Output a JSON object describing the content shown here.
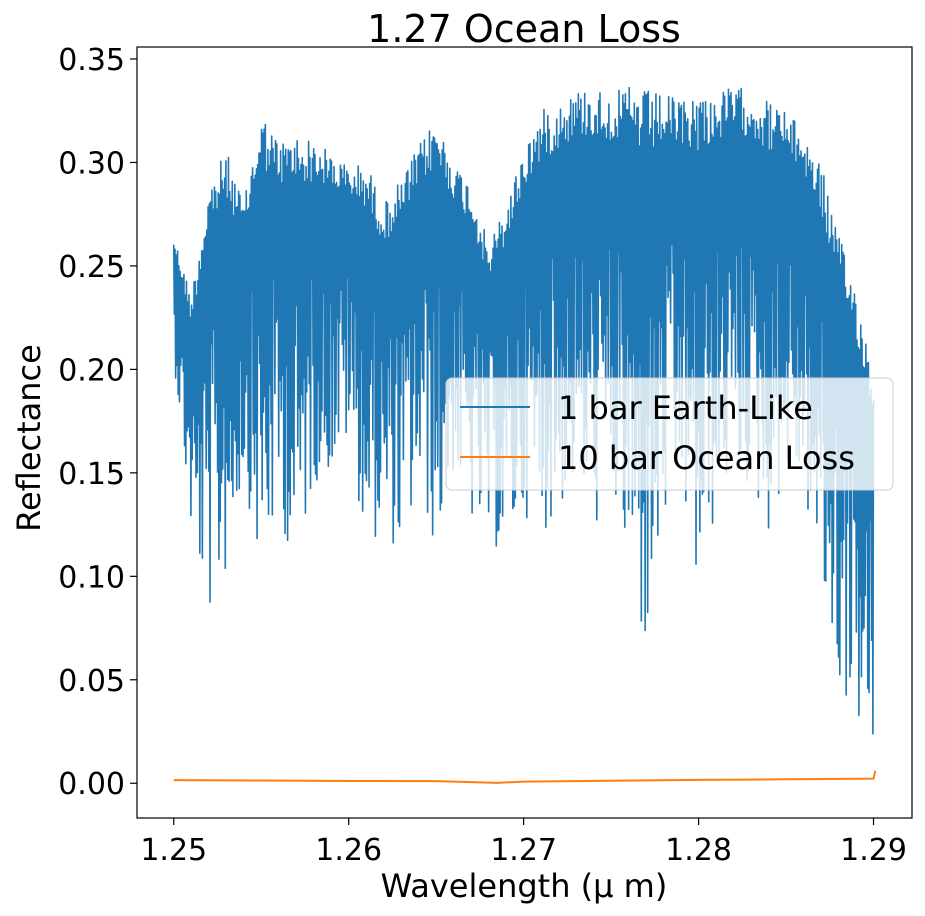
{
  "chart_data": {
    "type": "line",
    "title": "1.27 Ocean Loss",
    "xlabel": "Wavelength (μ m)",
    "ylabel": "Reflectance",
    "xlim": [
      1.2479,
      1.2922
    ],
    "ylim": [
      -0.0168,
      0.3558
    ],
    "x_ticks": [
      1.25,
      1.26,
      1.27,
      1.28,
      1.29
    ],
    "x_tick_labels": [
      "1.25",
      "1.26",
      "1.27",
      "1.28",
      "1.29"
    ],
    "y_ticks": [
      0.0,
      0.05,
      0.1,
      0.15,
      0.2,
      0.25,
      0.3,
      0.35
    ],
    "y_tick_labels": [
      "0.00",
      "0.05",
      "0.10",
      "0.15",
      "0.20",
      "0.25",
      "0.30",
      "0.35"
    ],
    "grid": false,
    "legend_position": "center-right",
    "series": [
      {
        "name": "1 bar Earth-Like",
        "color": "#1f77b4",
        "x": [
          1.25,
          1.251,
          1.252,
          1.253,
          1.254,
          1.255,
          1.256,
          1.257,
          1.258,
          1.259,
          1.26,
          1.261,
          1.262,
          1.263,
          1.264,
          1.265,
          1.266,
          1.267,
          1.268,
          1.269,
          1.27,
          1.271,
          1.272,
          1.273,
          1.274,
          1.275,
          1.276,
          1.277,
          1.278,
          1.279,
          1.28,
          1.281,
          1.282,
          1.283,
          1.284,
          1.285,
          1.286,
          1.287,
          1.288,
          1.289,
          1.29
        ],
        "y_upper": [
          0.265,
          0.236,
          0.29,
          0.306,
          0.28,
          0.325,
          0.31,
          0.314,
          0.31,
          0.305,
          0.298,
          0.3,
          0.28,
          0.292,
          0.308,
          0.322,
          0.3,
          0.29,
          0.26,
          0.28,
          0.307,
          0.325,
          0.33,
          0.335,
          0.337,
          0.333,
          0.337,
          0.335,
          0.333,
          0.33,
          0.335,
          0.333,
          0.337,
          0.335,
          0.33,
          0.325,
          0.315,
          0.3,
          0.265,
          0.24,
          0.198
        ],
        "y_lower": [
          0.205,
          0.12,
          0.08,
          0.1,
          0.15,
          0.097,
          0.13,
          0.1,
          0.145,
          0.15,
          0.165,
          0.115,
          0.12,
          0.11,
          0.14,
          0.11,
          0.15,
          0.125,
          0.115,
          0.11,
          0.13,
          0.12,
          0.13,
          0.145,
          0.12,
          0.14,
          0.095,
          0.06,
          0.12,
          0.14,
          0.085,
          0.13,
          0.15,
          0.14,
          0.12,
          0.15,
          0.14,
          0.09,
          0.045,
          0.03,
          0.01
        ]
      },
      {
        "name": "10 bar Ocean Loss",
        "color": "#ff7f0e",
        "x": [
          1.25,
          1.255,
          1.26,
          1.265,
          1.2685,
          1.27,
          1.275,
          1.28,
          1.285,
          1.29,
          1.2901
        ],
        "y": [
          0.0015,
          0.0013,
          0.0011,
          0.001,
          0.0002,
          0.0008,
          0.0012,
          0.0016,
          0.0019,
          0.0022,
          0.006
        ]
      }
    ]
  }
}
